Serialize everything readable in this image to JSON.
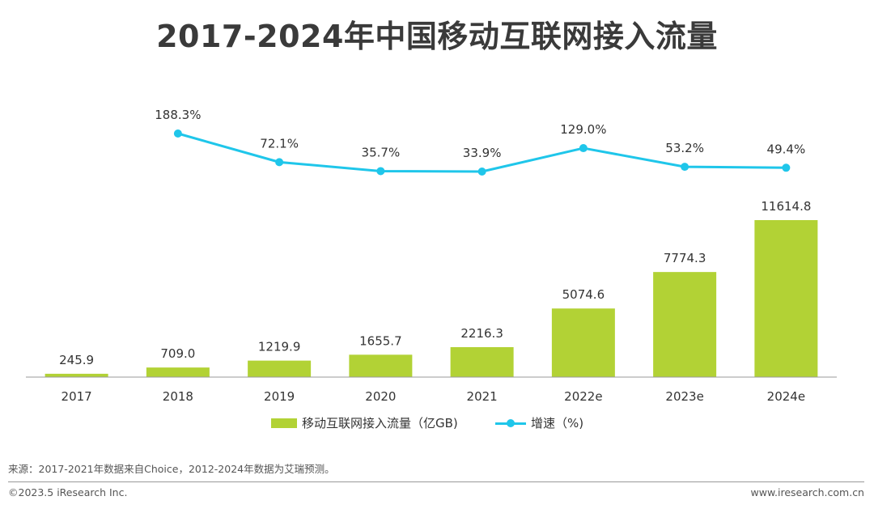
{
  "title": "2017-2024年中国移动互联网接入流量",
  "chart_data": {
    "type": "bar",
    "categories": [
      "2017",
      "2018",
      "2019",
      "2020",
      "2021",
      "2022e",
      "2023e",
      "2024e"
    ],
    "series": [
      {
        "name": "移动互联网接入流量（亿GB)",
        "type": "bar",
        "color": "#b2d235",
        "values": [
          245.9,
          709.0,
          1219.9,
          1655.7,
          2216.3,
          5074.6,
          7774.3,
          11614.8
        ],
        "labels": [
          "245.9",
          "709.0",
          "1219.9",
          "1655.7",
          "2216.3",
          "5074.6",
          "7774.3",
          "11614.8"
        ]
      },
      {
        "name": "增速（%)",
        "type": "line",
        "color": "#1fc6ea",
        "values": [
          null,
          188.3,
          72.1,
          35.7,
          33.9,
          129.0,
          53.2,
          49.4
        ],
        "labels": [
          "",
          "188.3%",
          "72.1%",
          "35.7%",
          "33.9%",
          "129.0%",
          "53.2%",
          "49.4%"
        ]
      }
    ],
    "legend_position": "bottom",
    "grid": false
  },
  "legend": {
    "bar_label": "移动互联网接入流量（亿GB)",
    "line_label": "增速（%)"
  },
  "footer": {
    "source": "来源：2017-2021年数据来自Choice，2012-2024年数据为艾瑞预测。",
    "copyright": "©2023.5 iResearch Inc.",
    "website": "www.iresearch.com.cn"
  }
}
